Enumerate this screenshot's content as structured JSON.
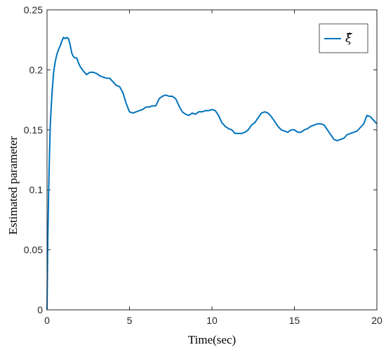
{
  "chart_data": {
    "type": "line",
    "title": "",
    "xlabel": "Time(sec)",
    "ylabel": "Estimated parameter",
    "xlim": [
      0,
      20
    ],
    "ylim": [
      0,
      0.25
    ],
    "xticks": [
      "0",
      "5",
      "10",
      "15",
      "20"
    ],
    "yticks": [
      "0",
      "0.05",
      "0.1",
      "0.15",
      "0.2",
      "0.25"
    ],
    "grid": false,
    "legend_position": "top-right",
    "series": [
      {
        "name": "ξ̂",
        "color": "#0072BD",
        "x": [
          0,
          0.05,
          0.1,
          0.15,
          0.2,
          0.3,
          0.4,
          0.5,
          0.6,
          0.7,
          0.8,
          0.9,
          1.0,
          1.1,
          1.2,
          1.3,
          1.4,
          1.5,
          1.6,
          1.7,
          1.8,
          1.9,
          2.0,
          2.2,
          2.4,
          2.6,
          2.8,
          3.0,
          3.2,
          3.4,
          3.6,
          3.8,
          4.0,
          4.2,
          4.4,
          4.6,
          4.8,
          5.0,
          5.2,
          5.4,
          5.6,
          5.8,
          6.0,
          6.2,
          6.4,
          6.6,
          6.8,
          7.0,
          7.2,
          7.4,
          7.6,
          7.8,
          8.0,
          8.2,
          8.4,
          8.6,
          8.8,
          9.0,
          9.2,
          9.4,
          9.6,
          9.8,
          10.0,
          10.2,
          10.4,
          10.6,
          10.8,
          11.0,
          11.2,
          11.4,
          11.6,
          11.8,
          12.0,
          12.2,
          12.4,
          12.6,
          12.8,
          13.0,
          13.2,
          13.4,
          13.6,
          13.8,
          14.0,
          14.2,
          14.4,
          14.6,
          14.8,
          15.0,
          15.2,
          15.4,
          15.6,
          15.8,
          16.0,
          16.2,
          16.4,
          16.6,
          16.8,
          17.0,
          17.2,
          17.4,
          17.6,
          17.8,
          18.0,
          18.2,
          18.4,
          18.6,
          18.8,
          19.0,
          19.2,
          19.4,
          19.6,
          19.8,
          20.0
        ],
        "y": [
          0,
          0.06,
          0.1,
          0.13,
          0.155,
          0.18,
          0.198,
          0.207,
          0.213,
          0.217,
          0.22,
          0.224,
          0.227,
          0.226,
          0.227,
          0.226,
          0.221,
          0.214,
          0.211,
          0.21,
          0.21,
          0.206,
          0.203,
          0.199,
          0.196,
          0.198,
          0.198,
          0.197,
          0.195,
          0.194,
          0.193,
          0.193,
          0.19,
          0.187,
          0.186,
          0.181,
          0.172,
          0.165,
          0.164,
          0.165,
          0.166,
          0.167,
          0.169,
          0.169,
          0.17,
          0.17,
          0.176,
          0.178,
          0.179,
          0.178,
          0.178,
          0.176,
          0.17,
          0.165,
          0.163,
          0.162,
          0.164,
          0.163,
          0.165,
          0.165,
          0.166,
          0.166,
          0.167,
          0.166,
          0.162,
          0.156,
          0.153,
          0.151,
          0.15,
          0.147,
          0.147,
          0.147,
          0.148,
          0.15,
          0.154,
          0.156,
          0.16,
          0.164,
          0.165,
          0.164,
          0.161,
          0.157,
          0.153,
          0.15,
          0.149,
          0.148,
          0.15,
          0.15,
          0.148,
          0.148,
          0.15,
          0.151,
          0.153,
          0.154,
          0.155,
          0.155,
          0.154,
          0.15,
          0.146,
          0.142,
          0.141,
          0.142,
          0.143,
          0.146,
          0.147,
          0.148,
          0.149,
          0.152,
          0.155,
          0.162,
          0.161,
          0.158,
          0.155
        ]
      }
    ]
  }
}
